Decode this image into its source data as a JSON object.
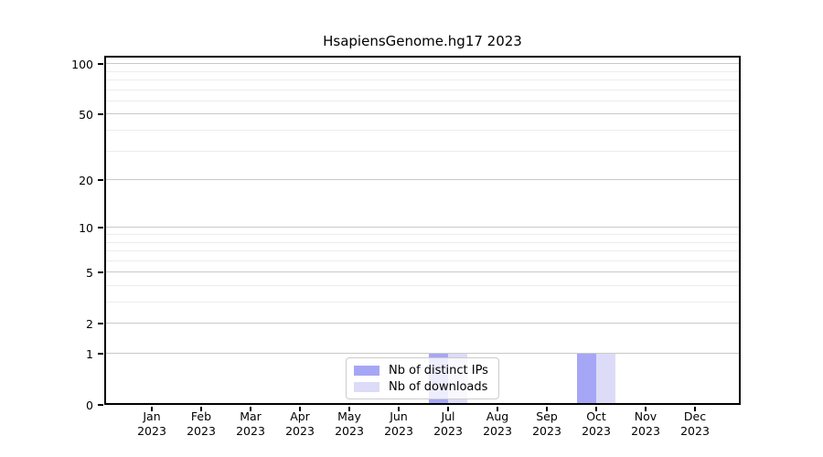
{
  "title": "HsapiensGenome.hg17 2023",
  "colors": {
    "distinct_ips_bar": "#a6a6f6",
    "downloads_bar": "#dcdcf8",
    "grid_major": "#c9c9c9",
    "grid_minor": "#ececec",
    "spine": "#000000",
    "legend_border": "#cccccc"
  },
  "legend": {
    "items": [
      {
        "label": "Nb of distinct IPs"
      },
      {
        "label": "Nb of downloads"
      }
    ]
  },
  "chart_data": {
    "type": "bar",
    "title": "HsapiensGenome.hg17 2023",
    "months": [
      "Jan",
      "Feb",
      "Mar",
      "Apr",
      "May",
      "Jun",
      "Jul",
      "Aug",
      "Sep",
      "Oct",
      "Nov",
      "Dec"
    ],
    "year": "2023",
    "categories": [
      "Jan 2023",
      "Feb 2023",
      "Mar 2023",
      "Apr 2023",
      "May 2023",
      "Jun 2023",
      "Jul 2023",
      "Aug 2023",
      "Sep 2023",
      "Oct 2023",
      "Nov 2023",
      "Dec 2023"
    ],
    "series": [
      {
        "name": "Nb of distinct IPs",
        "color": "#a6a6f6",
        "values": [
          0,
          0,
          0,
          0,
          0,
          0,
          1,
          0,
          0,
          1,
          0,
          0
        ]
      },
      {
        "name": "Nb of downloads",
        "color": "#dcdcf8",
        "values": [
          0,
          0,
          0,
          0,
          0,
          0,
          1,
          0,
          0,
          1,
          0,
          0
        ]
      }
    ],
    "xlabel": "",
    "ylabel": "",
    "yscale": "log10(1+x)",
    "ylim": [
      0,
      112
    ],
    "yticks_major": [
      0,
      1,
      2,
      5,
      10,
      20,
      50,
      100
    ],
    "yticks_minor": [
      3,
      4,
      6,
      7,
      8,
      9,
      30,
      40,
      60,
      70,
      80,
      90
    ],
    "grid": true,
    "legend_position": "inside-bottom-center"
  }
}
